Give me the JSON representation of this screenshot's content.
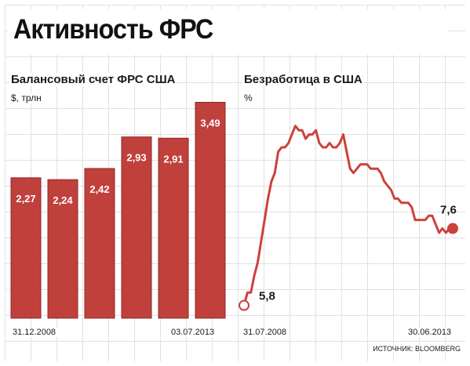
{
  "title": "Активность ФРС",
  "source": "ИСТОЧНИК: BLOOMBERG",
  "colors": {
    "bar": "#c0403c",
    "bar_edge": "#8e2a27",
    "line": "#cc423c",
    "grid": "#e1e1e1",
    "text": "#1a1a1a"
  },
  "chart_data": [
    {
      "type": "bar",
      "title": "Балансовый счет ФРС США",
      "ylabel": "$, трлн",
      "categories": [
        "31.12.2008",
        "",
        "",
        "",
        "",
        "03.07.2013"
      ],
      "x_tick_labels": [
        "31.12.2008",
        "03.07.2013"
      ],
      "values": [
        2.27,
        2.24,
        2.42,
        2.93,
        2.91,
        3.49
      ],
      "value_labels": [
        "2,27",
        "2,24",
        "2,42",
        "2,93",
        "2,91",
        "3,49"
      ],
      "ylim": [
        0,
        3.75
      ],
      "grid": true
    },
    {
      "type": "line",
      "title": "Безработица в США",
      "ylabel": "%",
      "x_tick_labels": [
        "31.07.2008",
        "30.06.2013"
      ],
      "start_label": "5,8",
      "end_label": "7,6",
      "values": [
        5.8,
        6.1,
        6.1,
        6.5,
        6.8,
        7.3,
        7.8,
        8.3,
        8.7,
        8.9,
        9.4,
        9.5,
        9.5,
        9.6,
        9.8,
        10.0,
        9.9,
        9.9,
        9.7,
        9.8,
        9.8,
        9.9,
        9.6,
        9.5,
        9.5,
        9.6,
        9.5,
        9.5,
        9.6,
        9.8,
        9.4,
        9.0,
        8.9,
        9.0,
        9.1,
        9.1,
        9.1,
        9.0,
        9.0,
        9.0,
        8.9,
        8.7,
        8.6,
        8.5,
        8.3,
        8.3,
        8.2,
        8.2,
        8.2,
        8.1,
        7.8,
        7.8,
        7.8,
        7.8,
        7.9,
        7.9,
        7.7,
        7.5,
        7.6,
        7.5,
        7.6,
        7.6
      ],
      "ylim": [
        5.5,
        10.6
      ],
      "grid": true
    }
  ]
}
